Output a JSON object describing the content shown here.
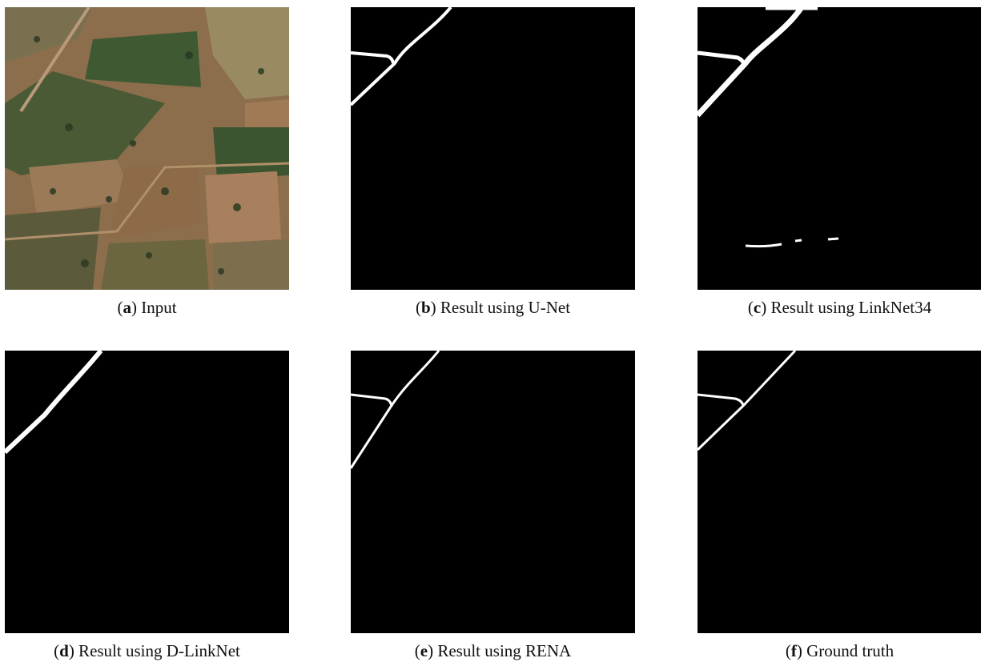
{
  "panels": [
    {
      "caption": [
        "(",
        "a",
        ") Input"
      ]
    },
    {
      "caption": [
        "(",
        "b",
        ") Result using U-Net"
      ]
    },
    {
      "caption": [
        "(",
        "c",
        ") Result using LinkNet34"
      ]
    },
    {
      "caption": [
        "(",
        "d",
        ") Result using D-LinkNet"
      ]
    },
    {
      "caption": [
        "(",
        "e",
        ") Result using RENA"
      ]
    },
    {
      "caption": [
        "(",
        "f",
        ") Ground truth"
      ]
    }
  ]
}
